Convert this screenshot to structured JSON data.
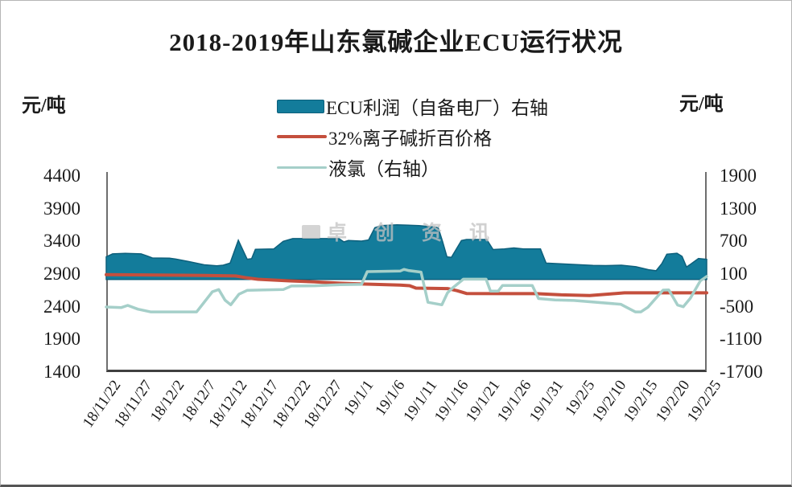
{
  "title": "2018-2019年山东氯碱企业ECU运行状况",
  "watermark": {
    "text": "卓创资讯"
  },
  "colors": {
    "ecu_area_fill": "#137c9b",
    "ecu_area_border": "#0e607c",
    "caustic_line": "#c44f3d",
    "chlorine_line": "#a5cfc9",
    "axis_line": "#6e6e6e",
    "text": "#1a1a1a"
  },
  "chart_data": {
    "type": "area",
    "title": "2018-2019年山东氯碱企业ECU运行状况",
    "grid": false,
    "legend_position": "top-center",
    "legend": [
      {
        "label": "ECU利润（自备电厂）右轴",
        "swatch": "area",
        "color": "#137c9b"
      },
      {
        "label": "32%离子碱折百价格",
        "swatch": "line",
        "color": "#c44f3d"
      },
      {
        "label": "液氯（右轴）",
        "swatch": "line",
        "color": "#a5cfc9"
      }
    ],
    "left_axis": {
      "unit": "元/吨",
      "min": 1400,
      "max": 4400,
      "ticks": [
        4400,
        3900,
        3400,
        2900,
        2400,
        1900,
        1400
      ],
      "tick_labels": [
        "4400",
        "3900",
        "3400",
        "2900",
        "2400",
        "1900",
        "1400"
      ]
    },
    "right_axis": {
      "unit": "元/吨",
      "min": -1700,
      "max": 1900,
      "ticks": [
        1900,
        1300,
        700,
        100,
        -500,
        -1100,
        -1700
      ],
      "tick_labels": [
        "1900",
        "1300",
        "700",
        "100",
        "-500",
        "-1100",
        "-1700"
      ]
    },
    "x_axis": {
      "labels": [
        "18/11/22",
        "18/11/27",
        "18/12/2",
        "18/12/7",
        "18/12/12",
        "18/12/17",
        "18/12/22",
        "18/12/27",
        "19/1/1",
        "19/1/6",
        "19/1/11",
        "19/1/16",
        "19/1/21",
        "19/1/26",
        "19/1/31",
        "19/2/5",
        "19/2/10",
        "19/2/15",
        "19/2/20",
        "19/2/25"
      ],
      "unit": "days since 18/11/22, 5-day label step",
      "min": 0,
      "max": 95
    },
    "series": [
      {
        "name": "ECU利润（自备电厂）",
        "axis": "right",
        "type": "area",
        "baseline": 0,
        "fill": "#137c9b",
        "stroke": "#0e607c",
        "stroke_width": 1.5,
        "points": [
          [
            0,
            415
          ],
          [
            1,
            470
          ],
          [
            3,
            480
          ],
          [
            5.5,
            470
          ],
          [
            6.5,
            430
          ],
          [
            7.3,
            395
          ],
          [
            10,
            390
          ],
          [
            11,
            375
          ],
          [
            13,
            330
          ],
          [
            15.5,
            270
          ],
          [
            17.5,
            250
          ],
          [
            18.5,
            262
          ],
          [
            19.6,
            300
          ],
          [
            20.9,
            720
          ],
          [
            22.3,
            372
          ],
          [
            23,
            382
          ],
          [
            23.6,
            555
          ],
          [
            26.5,
            560
          ],
          [
            28,
            700
          ],
          [
            29.5,
            750
          ],
          [
            36.8,
            750
          ],
          [
            37.6,
            690
          ],
          [
            38.3,
            715
          ],
          [
            40.4,
            705
          ],
          [
            41.5,
            725
          ],
          [
            42.5,
            950
          ],
          [
            43.5,
            990
          ],
          [
            46,
            1005
          ],
          [
            49.5,
            990
          ],
          [
            52.5,
            955
          ],
          [
            53.2,
            700
          ],
          [
            53.9,
            415
          ],
          [
            54.6,
            405
          ],
          [
            56.2,
            715
          ],
          [
            57,
            735
          ],
          [
            60.2,
            735
          ],
          [
            61.2,
            550
          ],
          [
            63,
            562
          ],
          [
            64.5,
            580
          ],
          [
            66,
            562
          ],
          [
            68.7,
            560
          ],
          [
            69.6,
            300
          ],
          [
            72.5,
            285
          ],
          [
            77,
            258
          ],
          [
            79,
            255
          ],
          [
            81.5,
            262
          ],
          [
            83.8,
            235
          ],
          [
            85.8,
            180
          ],
          [
            87,
            160
          ],
          [
            87.9,
            290
          ],
          [
            88.7,
            465
          ],
          [
            90.3,
            480
          ],
          [
            91.1,
            425
          ],
          [
            91.8,
            230
          ],
          [
            92.5,
            285
          ],
          [
            93.7,
            385
          ],
          [
            95,
            370
          ]
        ]
      },
      {
        "name": "32%离子碱折百价格",
        "axis": "left",
        "type": "line",
        "stroke": "#c44f3d",
        "stroke_width": 4,
        "points": [
          [
            0,
            2890
          ],
          [
            14,
            2880
          ],
          [
            20.5,
            2870
          ],
          [
            22,
            2845
          ],
          [
            24,
            2820
          ],
          [
            29,
            2795
          ],
          [
            33,
            2780
          ],
          [
            37,
            2760
          ],
          [
            40.5,
            2748
          ],
          [
            46.5,
            2730
          ],
          [
            48,
            2722
          ],
          [
            49,
            2685
          ],
          [
            54,
            2678
          ],
          [
            55.5,
            2645
          ],
          [
            57,
            2602
          ],
          [
            68,
            2600
          ],
          [
            72,
            2582
          ],
          [
            76.5,
            2572
          ],
          [
            80,
            2598
          ],
          [
            82,
            2612
          ],
          [
            95,
            2612
          ]
        ]
      },
      {
        "name": "液氯",
        "axis": "right",
        "type": "line",
        "stroke": "#a5cfc9",
        "stroke_width": 3.5,
        "points": [
          [
            0,
            -505
          ],
          [
            2.4,
            -515
          ],
          [
            3.4,
            -475
          ],
          [
            5,
            -545
          ],
          [
            7,
            -595
          ],
          [
            14.3,
            -595
          ],
          [
            16.8,
            -225
          ],
          [
            17.8,
            -185
          ],
          [
            18.8,
            -380
          ],
          [
            19.7,
            -465
          ],
          [
            21,
            -270
          ],
          [
            22.3,
            -200
          ],
          [
            25,
            -190
          ],
          [
            28,
            -185
          ],
          [
            29.3,
            -120
          ],
          [
            33,
            -115
          ],
          [
            37,
            -95
          ],
          [
            40.4,
            -90
          ],
          [
            41.3,
            145
          ],
          [
            46.5,
            155
          ],
          [
            47.1,
            185
          ],
          [
            47.8,
            165
          ],
          [
            49.8,
            135
          ],
          [
            50.9,
            -420
          ],
          [
            53.1,
            -465
          ],
          [
            54,
            -245
          ],
          [
            54.7,
            -165
          ],
          [
            56.5,
            5
          ],
          [
            60.1,
            5
          ],
          [
            60.8,
            -215
          ],
          [
            62,
            -215
          ],
          [
            62.7,
            -110
          ],
          [
            67.4,
            -110
          ],
          [
            68.4,
            -350
          ],
          [
            71,
            -375
          ],
          [
            74,
            -385
          ],
          [
            81.4,
            -455
          ],
          [
            83.7,
            -595
          ],
          [
            84.6,
            -595
          ],
          [
            85.7,
            -510
          ],
          [
            88.1,
            -195
          ],
          [
            89,
            -190
          ],
          [
            90.4,
            -470
          ],
          [
            91.3,
            -500
          ],
          [
            92.4,
            -345
          ],
          [
            94,
            -25
          ],
          [
            95,
            55
          ]
        ]
      }
    ]
  },
  "layout_note": "plot area 131,218 to 877,462"
}
